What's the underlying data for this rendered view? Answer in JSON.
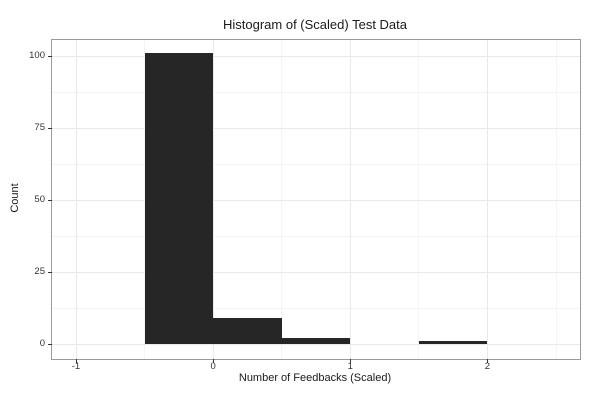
{
  "figure": {
    "title": "Histogram of (Scaled) Test Data",
    "xlabel": "Number of Feedbacks (Scaled)",
    "ylabel": "Count"
  },
  "chart_data": {
    "type": "bar",
    "subtype": "histogram",
    "title": "Histogram of (Scaled) Test Data",
    "xlabel": "Number of Feedbacks (Scaled)",
    "ylabel": "Count",
    "bin_width": 0.5,
    "bin_edges": [
      -1,
      -0.5,
      0,
      0.5,
      1,
      1.5,
      2,
      2.5
    ],
    "counts": [
      0,
      101,
      9,
      2,
      0,
      1,
      0
    ],
    "x_major_ticks": [
      -1,
      0,
      1,
      2
    ],
    "x_minor_ticks": [
      -0.5,
      0.5,
      1.5,
      2.5
    ],
    "y_major_ticks": [
      0,
      25,
      50,
      75,
      100
    ],
    "y_minor_ticks": [
      12.5,
      37.5,
      62.5,
      87.5
    ],
    "xlim": [
      -1.175,
      2.675
    ],
    "ylim": [
      -5.13,
      105.66
    ],
    "grid": true,
    "legend": false,
    "colors": {
      "bar_fill": "#262626",
      "panel_background": "#ffffff",
      "panel_border": "#9a9a9a",
      "grid_major": "#e9e9e9",
      "grid_minor": "#f4f4f4",
      "tick_color": "#333333",
      "text_color": "#1a1a1a"
    }
  }
}
